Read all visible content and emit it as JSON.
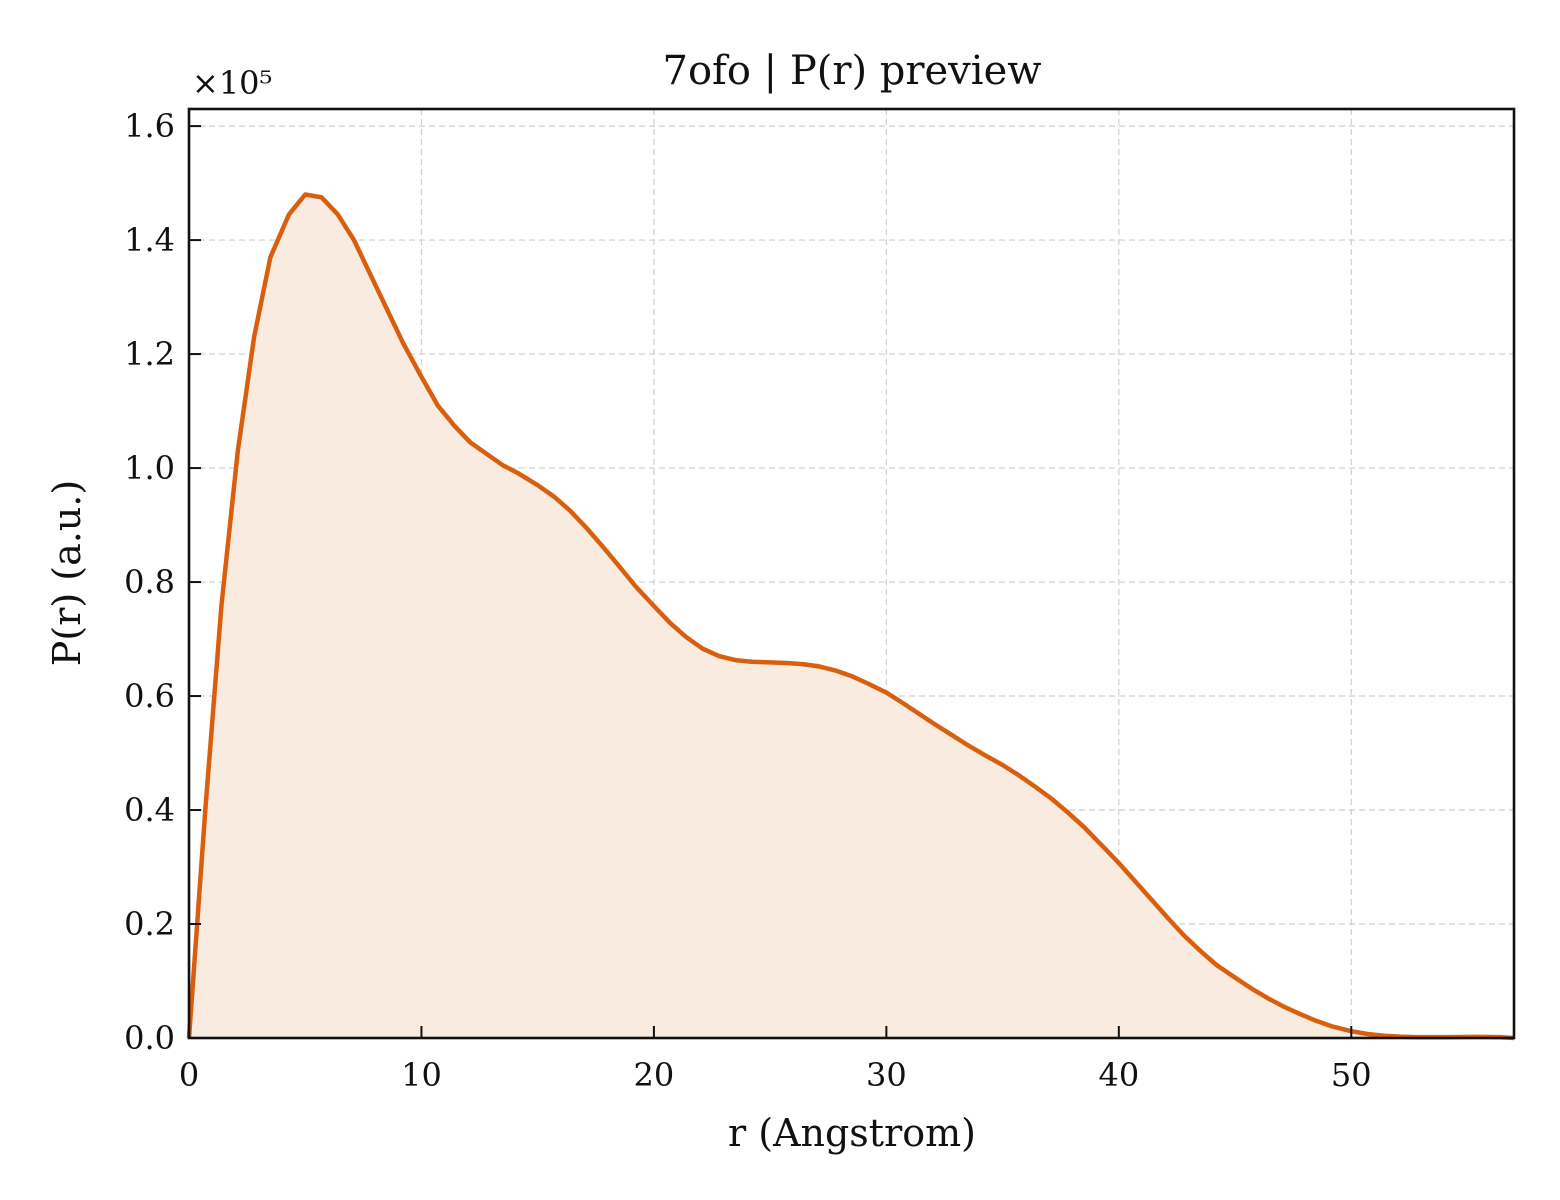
{
  "chart_data": {
    "type": "area",
    "title": "7ofo | P(r) preview",
    "xlabel": "r (Angstrom)",
    "ylabel": "P(r) (a.u.)",
    "y_offset_label": "×10⁵",
    "xlim": [
      0,
      57
    ],
    "ylim": [
      0,
      1.63
    ],
    "xticks": [
      0,
      10,
      20,
      30,
      40,
      50
    ],
    "xtick_labels": [
      "0",
      "10",
      "20",
      "30",
      "40",
      "50"
    ],
    "yticks": [
      0,
      0.2,
      0.4,
      0.6,
      0.8,
      1.0,
      1.2,
      1.4,
      1.6
    ],
    "ytick_labels": [
      "0.0",
      "0.2",
      "0.4",
      "0.6",
      "0.8",
      "1.0",
      "1.2",
      "1.4",
      "1.6"
    ],
    "grid": true,
    "line_color": "#d95f0e",
    "fill_color": "#f9ebe0",
    "series": [
      {
        "x": [
          0,
          0.7,
          1.4,
          2.1,
          2.8,
          3.5,
          4.3,
          5.0,
          5.7,
          6.4,
          7.1,
          7.8,
          8.5,
          9.2,
          10.0,
          10.7,
          11.4,
          12.1,
          12.8,
          13.5,
          14.2,
          15.0,
          15.7,
          16.4,
          17.1,
          17.8,
          18.5,
          19.2,
          20.0,
          20.7,
          21.4,
          22.1,
          22.8,
          23.5,
          24.2,
          25.0,
          25.7,
          26.4,
          27.1,
          27.8,
          28.5,
          29.2,
          30.0,
          30.7,
          31.4,
          32.1,
          32.8,
          33.5,
          34.2,
          35.0,
          35.7,
          36.4,
          37.1,
          37.8,
          38.5,
          39.2,
          40.0,
          40.7,
          41.4,
          42.1,
          42.8,
          43.5,
          44.2,
          45.0,
          45.7,
          46.4,
          47.1,
          47.8,
          48.5,
          49.2,
          50.0,
          50.7,
          51.4,
          52.1,
          52.8,
          53.5,
          54.2,
          55.0,
          55.7,
          56.4,
          57.0
        ],
        "values": [
          0.0,
          0.4,
          0.76,
          1.03,
          1.23,
          1.37,
          1.445,
          1.48,
          1.475,
          1.445,
          1.4,
          1.34,
          1.28,
          1.22,
          1.16,
          1.11,
          1.075,
          1.045,
          1.025,
          1.005,
          0.99,
          0.97,
          0.95,
          0.925,
          0.895,
          0.862,
          0.828,
          0.793,
          0.758,
          0.728,
          0.703,
          0.683,
          0.67,
          0.663,
          0.66,
          0.659,
          0.658,
          0.656,
          0.652,
          0.645,
          0.635,
          0.622,
          0.606,
          0.588,
          0.569,
          0.55,
          0.532,
          0.514,
          0.497,
          0.479,
          0.461,
          0.441,
          0.42,
          0.396,
          0.37,
          0.341,
          0.307,
          0.275,
          0.243,
          0.211,
          0.18,
          0.153,
          0.128,
          0.106,
          0.087,
          0.07,
          0.055,
          0.042,
          0.03,
          0.02,
          0.012,
          0.007,
          0.004,
          0.0025,
          0.0015,
          0.0015,
          0.0015,
          0.002,
          0.002,
          0.0015,
          0.0
        ]
      }
    ]
  }
}
